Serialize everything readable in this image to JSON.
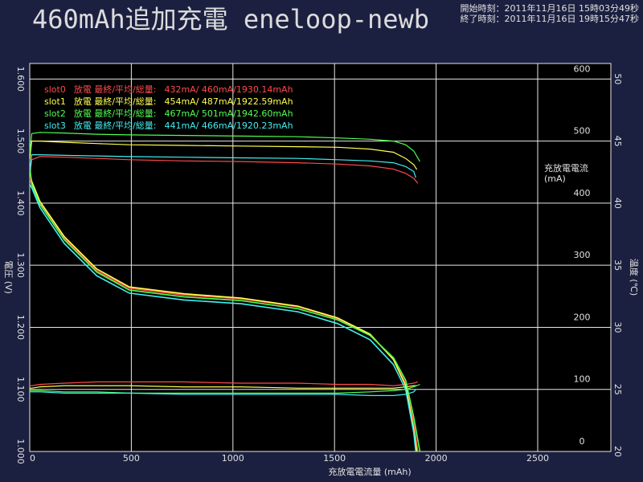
{
  "chart_data": {
    "type": "line",
    "title": "460mAh追加充電 eneloop-newb",
    "start_time": "開始時刻：2011年11月16日 15時03分49秒",
    "end_time": "終了時刻：2011年11月16日 19時15分47秒",
    "x_label": "充放電電流量 (mAh)",
    "y_label": "電圧 (V)",
    "y2_label": "充放電電流",
    "y2_unit": "(mA)",
    "y3_label": "温度 (℃)",
    "xlim": [
      0,
      2860
    ],
    "xticks": [
      0,
      500,
      1000,
      1500,
      2000,
      2500
    ],
    "ylim": [
      1.0,
      1.625
    ],
    "yticks": [
      {
        "value": 1.0,
        "label": "1.000"
      },
      {
        "value": 1.1,
        "label": "1.100"
      },
      {
        "value": 1.2,
        "label": "1.200"
      },
      {
        "value": 1.3,
        "label": "1.300"
      },
      {
        "value": 1.4,
        "label": "1.400"
      },
      {
        "value": 1.5,
        "label": "1.500"
      },
      {
        "value": 1.6,
        "label": "1.600"
      }
    ],
    "y2lim": [
      0,
      625
    ],
    "y2ticks": [
      0,
      100,
      200,
      300,
      400,
      500,
      600
    ],
    "y3lim": [
      20,
      51.25
    ],
    "y3ticks": [
      20,
      25,
      30,
      35,
      40,
      45,
      50
    ],
    "grid": true,
    "legend": "upper left",
    "slots": [
      {
        "name": "slot0",
        "mode": "放電 最終/平均/総量:",
        "summary": "432mA/ 460mA/1930.14mAh",
        "color": "#ff4a4a",
        "x": [
          0,
          10,
          50,
          170,
          330,
          490,
          760,
          1040,
          1320,
          1515,
          1675,
          1790,
          1850,
          1890,
          1910
        ],
        "voltage": [
          1.44,
          1.43,
          1.4,
          1.343,
          1.291,
          1.263,
          1.252,
          1.246,
          1.233,
          1.214,
          1.188,
          1.149,
          1.11,
          1.045,
          1.0
        ],
        "current": [
          440,
          470,
          475,
          474,
          472,
          470,
          468,
          467,
          465,
          463,
          460,
          455,
          448,
          440,
          432
        ],
        "temperature": [
          25.3,
          25.3,
          25.4,
          25.5,
          25.6,
          25.6,
          25.6,
          25.5,
          25.5,
          25.4,
          25.4,
          25.3,
          25.4,
          25.5,
          25.6
        ]
      },
      {
        "name": "slot1",
        "mode": "放電 最終/平均/総量:",
        "summary": "454mA/ 487mA/1922.59mAh",
        "color": "#ffff50",
        "x": [
          0,
          10,
          50,
          170,
          330,
          490,
          760,
          1040,
          1320,
          1515,
          1675,
          1790,
          1850,
          1890,
          1905
        ],
        "voltage": [
          1.45,
          1.435,
          1.403,
          1.346,
          1.294,
          1.265,
          1.254,
          1.247,
          1.234,
          1.215,
          1.189,
          1.148,
          1.106,
          1.035,
          1.0
        ],
        "current": [
          470,
          500,
          500,
          498,
          496,
          494,
          493,
          492,
          491,
          490,
          487,
          482,
          472,
          462,
          454
        ],
        "temperature": [
          25.1,
          25.1,
          25.2,
          25.3,
          25.3,
          25.3,
          25.2,
          25.2,
          25.1,
          25.1,
          25.1,
          25.1,
          25.2,
          25.3,
          25.3
        ]
      },
      {
        "name": "slot2",
        "mode": "放電 最終/平均/総量:",
        "summary": "467mA/ 501mA/1942.60mAh",
        "color": "#50ff50",
        "x": [
          0,
          10,
          50,
          170,
          330,
          490,
          760,
          1040,
          1320,
          1515,
          1675,
          1790,
          1850,
          1890,
          1920
        ],
        "voltage": [
          1.46,
          1.43,
          1.398,
          1.341,
          1.289,
          1.26,
          1.249,
          1.243,
          1.23,
          1.212,
          1.187,
          1.151,
          1.115,
          1.055,
          1.0
        ],
        "current": [
          480,
          512,
          514,
          513,
          511,
          510,
          509,
          508,
          507,
          505,
          503,
          500,
          494,
          484,
          467
        ],
        "temperature": [
          24.9,
          24.9,
          24.9,
          24.8,
          24.8,
          24.7,
          24.7,
          24.7,
          24.7,
          24.7,
          24.8,
          24.9,
          25.0,
          25.2,
          25.4
        ]
      },
      {
        "name": "slot3",
        "mode": "放電 最終/平均/総量:",
        "summary": "441mA/ 466mA/1920.23mAh",
        "color": "#40f0f0",
        "x": [
          0,
          10,
          50,
          170,
          330,
          490,
          760,
          1040,
          1320,
          1515,
          1675,
          1790,
          1850,
          1890,
          1900
        ],
        "voltage": [
          1.43,
          1.425,
          1.393,
          1.335,
          1.283,
          1.255,
          1.244,
          1.238,
          1.225,
          1.206,
          1.18,
          1.14,
          1.1,
          1.03,
          1.0
        ],
        "current": [
          450,
          478,
          478,
          477,
          476,
          475,
          474,
          473,
          472,
          470,
          468,
          465,
          459,
          451,
          441
        ],
        "temperature": [
          24.8,
          24.8,
          24.8,
          24.7,
          24.7,
          24.7,
          24.6,
          24.6,
          24.6,
          24.6,
          24.5,
          24.5,
          24.6,
          24.8,
          25.0
        ]
      }
    ]
  }
}
